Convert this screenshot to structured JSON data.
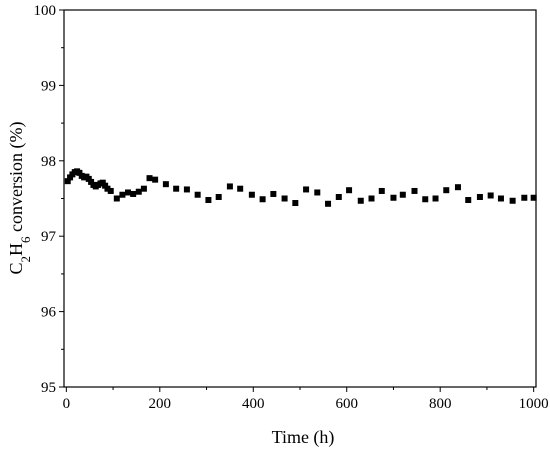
{
  "chart_data": {
    "type": "scatter",
    "xlabel": "Time (h)",
    "ylabel": "C2H6 conversion (%)",
    "ylabel_parts": {
      "p1": "C",
      "s1": "2",
      "p2": "H",
      "s2": "6",
      "p3": " conversion (%)"
    },
    "xlim": [
      -5,
      1005
    ],
    "ylim": [
      95,
      100
    ],
    "x_ticks": [
      0,
      200,
      400,
      600,
      800,
      1000
    ],
    "y_ticks": [
      95,
      96,
      97,
      98,
      99,
      100
    ],
    "grid": false,
    "marker": "square",
    "color": "#000000",
    "series": [
      {
        "x": [
          3,
          8,
          13,
          18,
          23,
          28,
          33,
          38,
          43,
          48,
          53,
          58,
          63,
          68,
          73,
          78,
          83,
          88,
          95,
          108,
          120,
          132,
          143,
          155,
          166,
          178,
          190,
          213,
          235,
          258,
          281,
          304,
          326,
          350,
          372,
          397,
          420,
          443,
          467,
          490,
          513,
          537,
          560,
          583,
          605,
          630,
          653,
          675,
          700,
          720,
          745,
          768,
          790,
          813,
          838,
          860,
          885,
          908,
          930,
          955,
          980,
          1000
        ],
        "y": [
          97.73,
          97.78,
          97.82,
          97.85,
          97.86,
          97.84,
          97.8,
          97.78,
          97.79,
          97.76,
          97.72,
          97.68,
          97.66,
          97.68,
          97.7,
          97.71,
          97.67,
          97.63,
          97.6,
          97.5,
          97.55,
          97.58,
          97.56,
          97.59,
          97.63,
          97.77,
          97.75,
          97.69,
          97.63,
          97.62,
          97.55,
          97.48,
          97.52,
          97.66,
          97.63,
          97.55,
          97.49,
          97.56,
          97.5,
          97.44,
          97.62,
          97.58,
          97.43,
          97.52,
          97.61,
          97.47,
          97.5,
          97.6,
          97.51,
          97.55,
          97.6,
          97.49,
          97.5,
          97.61,
          97.65,
          97.48,
          97.52,
          97.54,
          97.5,
          97.47,
          97.51,
          97.51
        ]
      }
    ]
  }
}
